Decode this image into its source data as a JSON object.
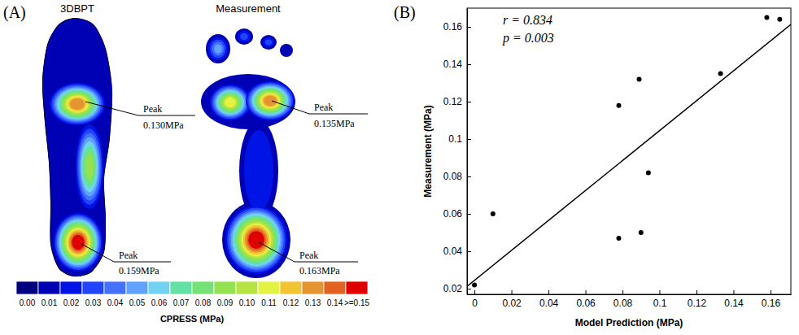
{
  "chart_data": [
    {
      "type": "contour",
      "label": "(A)",
      "maps": [
        {
          "title": "3DBPT",
          "regions": [
            {
              "value": 0.13,
              "label": "Peak",
              "value_label": "0.130MPa"
            },
            {
              "value": 0.159,
              "label": "Peak",
              "value_label": "0.159MPa"
            },
            {
              "value": 0.09
            }
          ]
        },
        {
          "title": "Measurement",
          "regions": [
            {
              "value": 0.135,
              "label": "Peak",
              "value_label": "0.135MPa"
            },
            {
              "value": 0.163,
              "label": "Peak",
              "value_label": "0.163MPa"
            },
            {
              "value": 0.11
            },
            {
              "value": 0.05
            },
            {
              "value": 0.03
            },
            {
              "value": 0.03
            },
            {
              "value": 0.02
            }
          ]
        }
      ],
      "colorbar": {
        "title": "CPRESS (MPa)",
        "range": [
          0,
          0.16
        ],
        "ticks": [
          {
            "value": 0,
            "label": "0.00"
          },
          {
            "value": 0.01,
            "label": "0.01"
          },
          {
            "value": 0.02,
            "label": "0.02"
          },
          {
            "value": 0.03,
            "label": "0.03"
          },
          {
            "value": 0.04,
            "label": "0.04"
          },
          {
            "value": 0.05,
            "label": "0.05"
          },
          {
            "value": 0.06,
            "label": "0.06"
          },
          {
            "value": 0.07,
            "label": "0.07"
          },
          {
            "value": 0.08,
            "label": "0.08"
          },
          {
            "value": 0.09,
            "label": "0.09"
          },
          {
            "value": 0.1,
            "label": "0.10"
          },
          {
            "value": 0.11,
            "label": "0.11"
          },
          {
            "value": 0.12,
            "label": "0.12"
          },
          {
            "value": 0.13,
            "label": "0.13"
          },
          {
            "value": 0.14,
            "label": "0.14"
          },
          {
            "value": 0.15,
            "label": ">=0.15"
          }
        ],
        "colors": [
          "#000080",
          "#0000b4",
          "#0014e6",
          "#2244ff",
          "#4272ff",
          "#62a2ff",
          "#72d2f2",
          "#62e2a4",
          "#74e274",
          "#94e252",
          "#b6e442",
          "#e4f242",
          "#f2c432",
          "#e49432",
          "#e26222",
          "#e00000"
        ]
      }
    },
    {
      "type": "scatter",
      "label": "(B)",
      "xlabel": "Model Prediction (MPa)",
      "ylabel": "Measurement (MPa)",
      "x": [
        0,
        0.01,
        0.078,
        0.078,
        0.089,
        0.09,
        0.094,
        0.133,
        0.158,
        0.165
      ],
      "values": [
        0.022,
        0.06,
        0.118,
        0.047,
        0.132,
        0.05,
        0.082,
        0.135,
        0.165,
        0.164
      ],
      "xlim": [
        -0.004,
        0.171
      ],
      "ylim": [
        0.017,
        0.17
      ],
      "xticks": [
        0,
        0.02,
        0.04,
        0.06,
        0.08,
        0.1,
        0.12,
        0.14,
        0.16
      ],
      "yticks": [
        0.02,
        0.04,
        0.06,
        0.08,
        0.1,
        0.12,
        0.14,
        0.16
      ],
      "fit": {
        "slope": 0.8,
        "intercept": 0.0245
      },
      "annotations": [
        "r = 0.834",
        "p = 0.003"
      ],
      "marker": "circle",
      "color": "#000000"
    }
  ]
}
